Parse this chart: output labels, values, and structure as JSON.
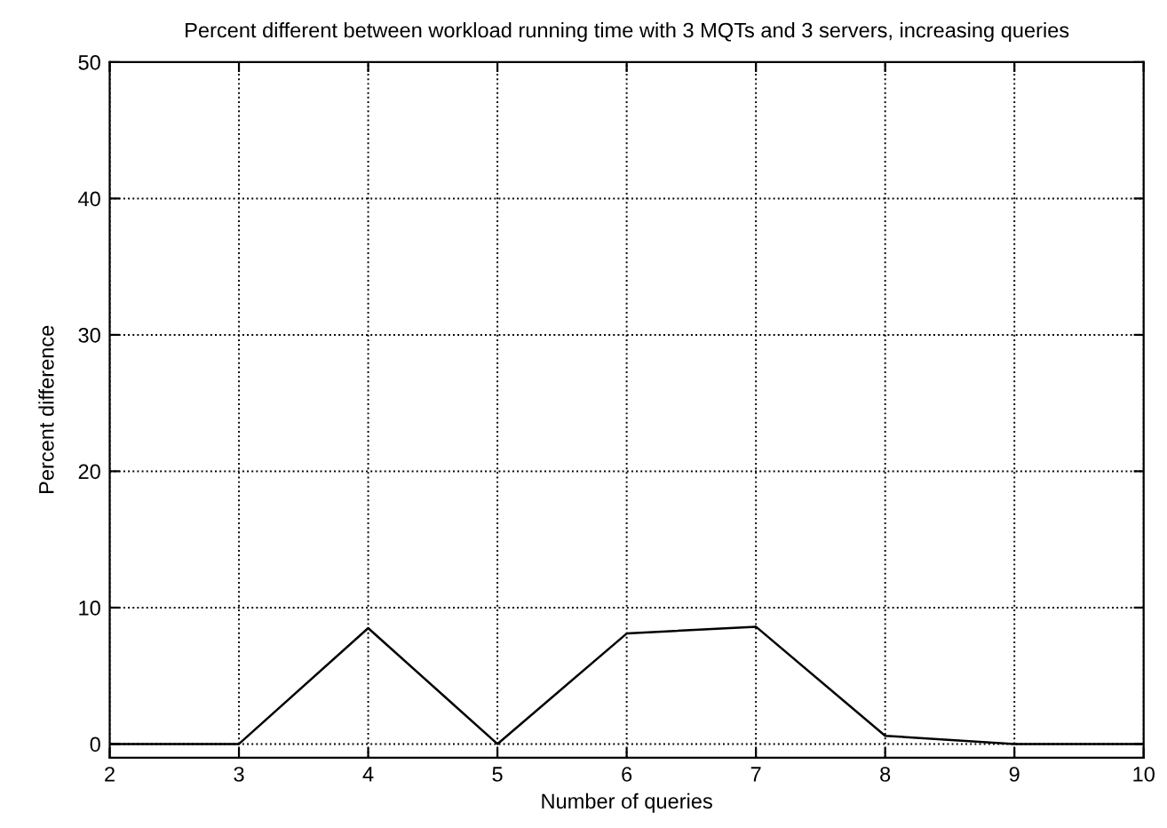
{
  "chart_data": {
    "type": "line",
    "title": "Percent different between workload running time with 3 MQTs and 3 servers, increasing queries",
    "xlabel": "Number of queries",
    "ylabel": "Percent difference",
    "x": [
      2,
      3,
      4,
      5,
      6,
      7,
      8,
      9,
      10
    ],
    "series": [
      {
        "color": "#000000",
        "values": [
          0,
          0,
          8.5,
          0,
          8.1,
          8.6,
          0.6,
          0,
          0
        ]
      }
    ],
    "xlim": [
      2,
      10
    ],
    "xticks": [
      2,
      3,
      4,
      5,
      6,
      7,
      8,
      9,
      10
    ],
    "ylim": [
      -1,
      50
    ],
    "yticks": [
      0,
      10,
      20,
      30,
      40,
      50
    ],
    "grid": true,
    "marker": "none",
    "line_style": "solid"
  }
}
